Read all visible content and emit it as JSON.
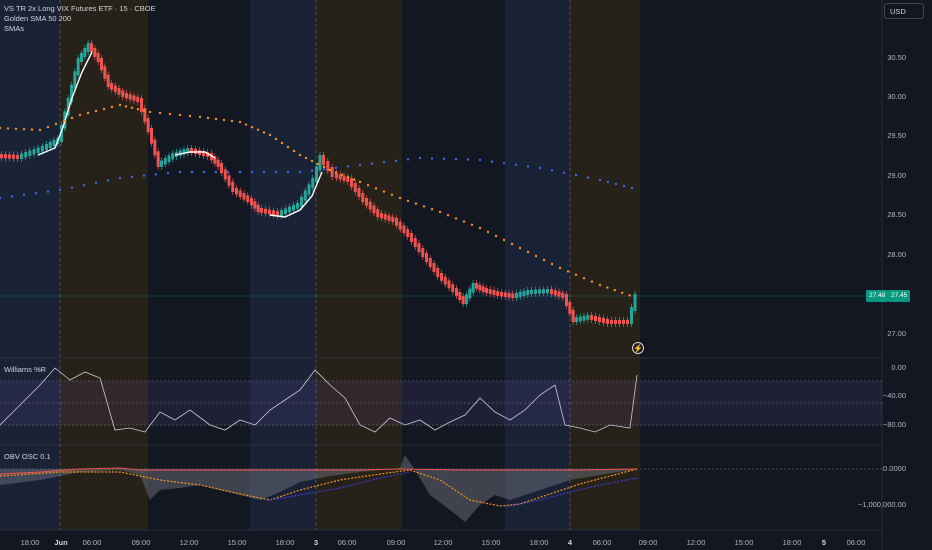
{
  "legend": {
    "title": "VS TR 2x Long VIX Futures ETF · 15 · CBOE",
    "line2": "Golden SMA 50 200",
    "line3": "SMAs"
  },
  "currency_button": "USD",
  "price_axis": [
    "30.50",
    "30.00",
    "29.50",
    "29.00",
    "28.50",
    "28.00",
    "27.00"
  ],
  "last_price_tags": [
    "27.48",
    "27.45"
  ],
  "williams": {
    "label": "Williams %R",
    "axis": [
      "0.00",
      "−40.00",
      "−80.00"
    ]
  },
  "obv": {
    "label": "OBV OSC 0.1",
    "axis": [
      "0.0000",
      "−1,000,000.00"
    ]
  },
  "time_axis": [
    "18:00",
    "Jun",
    "06:00",
    "09:00",
    "12:00",
    "15:00",
    "18:00",
    "3",
    "06:00",
    "09:00",
    "12:00",
    "15:00",
    "18:00",
    "4",
    "06:00",
    "09:00",
    "12:00",
    "15:00",
    "18:00",
    "5",
    "06:00"
  ],
  "colors": {
    "background": "#131722",
    "up": "#26a69a",
    "down": "#ef5350",
    "sma50": "#f7931a",
    "sma200": "#3d6cf0",
    "premarket": "#1c2539",
    "afterhours": "#2a2418"
  },
  "icons": {
    "alert": "lightning-icon"
  }
}
